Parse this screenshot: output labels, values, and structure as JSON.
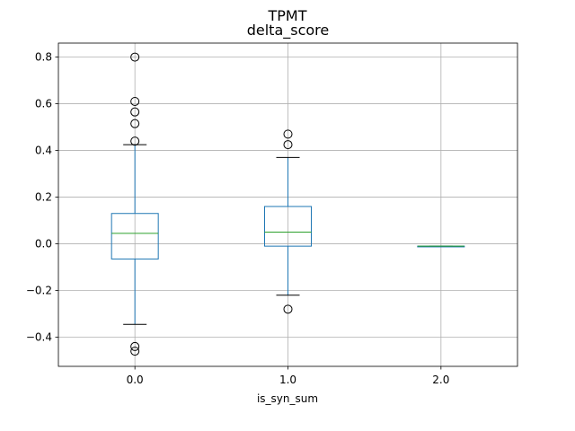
{
  "chart_data": {
    "type": "box",
    "suptitle": "TPMT",
    "title": "delta_score",
    "xlabel": "is_syn_sum",
    "ylabel": "",
    "categories": [
      "0.0",
      "1.0",
      "2.0"
    ],
    "y_ticks": [
      -0.4,
      -0.2,
      0.0,
      0.2,
      0.4,
      0.6,
      0.8
    ],
    "y_tick_labels": [
      "−0.4",
      "−0.2",
      "0.0",
      "0.2",
      "0.4",
      "0.6",
      "0.8"
    ],
    "ylim": [
      -0.525,
      0.86
    ],
    "grid": true,
    "boxes": [
      {
        "category": "0.0",
        "q1": -0.065,
        "median": 0.045,
        "q3": 0.13,
        "whisker_low": -0.345,
        "whisker_high": 0.425,
        "outliers": [
          0.8,
          0.61,
          0.565,
          0.515,
          0.44,
          -0.44,
          -0.46
        ]
      },
      {
        "category": "1.0",
        "q1": -0.01,
        "median": 0.05,
        "q3": 0.16,
        "whisker_low": -0.22,
        "whisker_high": 0.37,
        "outliers": [
          0.47,
          0.425,
          -0.28
        ]
      },
      {
        "category": "2.0",
        "q1": -0.01,
        "median": -0.01,
        "q3": -0.01,
        "whisker_low": -0.01,
        "whisker_high": -0.01,
        "outliers": []
      }
    ],
    "colors": {
      "box": "#1f77b4",
      "median": "#2ca02c",
      "whisker_cap": "#000000",
      "outlier": "#000000",
      "grid": "#b0b0b0"
    }
  }
}
